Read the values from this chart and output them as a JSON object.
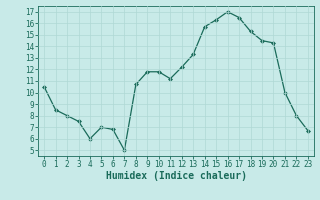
{
  "xlabel": "Humidex (Indice chaleur)",
  "ylabel": "",
  "x": [
    0,
    1,
    2,
    3,
    4,
    5,
    6,
    7,
    8,
    9,
    10,
    11,
    12,
    13,
    14,
    15,
    16,
    17,
    18,
    19,
    20,
    21,
    22,
    23
  ],
  "y": [
    10.5,
    8.5,
    8.0,
    7.5,
    6.0,
    7.0,
    6.8,
    5.0,
    10.7,
    11.8,
    11.8,
    11.2,
    12.2,
    13.3,
    15.7,
    16.3,
    17.0,
    16.5,
    15.3,
    14.5,
    14.3,
    10.0,
    8.0,
    6.7
  ],
  "line_color": "#1a6b5a",
  "marker": "D",
  "marker_size": 2.0,
  "bg_color": "#c8eae8",
  "grid_color": "#afd8d5",
  "xlim": [
    -0.5,
    23.5
  ],
  "ylim": [
    4.5,
    17.5
  ],
  "yticks": [
    5,
    6,
    7,
    8,
    9,
    10,
    11,
    12,
    13,
    14,
    15,
    16,
    17
  ],
  "xticks": [
    0,
    1,
    2,
    3,
    4,
    5,
    6,
    7,
    8,
    9,
    10,
    11,
    12,
    13,
    14,
    15,
    16,
    17,
    18,
    19,
    20,
    21,
    22,
    23
  ],
  "tick_fontsize": 5.5,
  "label_fontsize": 7.0
}
